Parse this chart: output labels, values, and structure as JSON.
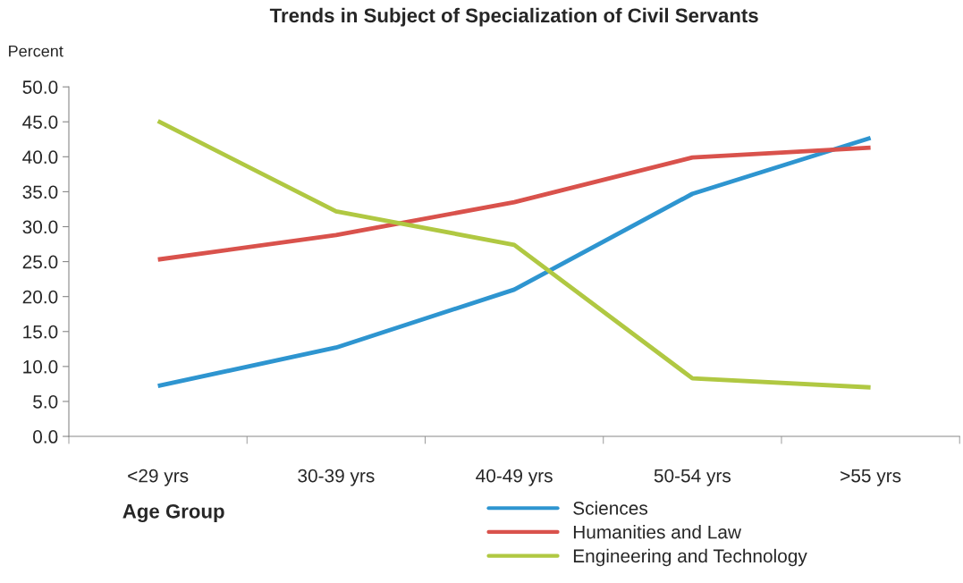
{
  "chart_data": {
    "type": "line",
    "title": "Trends in Subject of Specialization of Civil Servants",
    "ylabel": "Percent",
    "xlabel": "Age Group",
    "categories": [
      "<29 yrs",
      "30-39 yrs",
      "40-49 yrs",
      "50-54 yrs",
      ">55 yrs"
    ],
    "series": [
      {
        "name": "Sciences",
        "color": "#2e95d0",
        "values": [
          7.2,
          12.7,
          21.0,
          34.7,
          42.7
        ]
      },
      {
        "name": "Humanities and Law",
        "color": "#d9524c",
        "values": [
          25.3,
          28.8,
          33.5,
          39.9,
          41.3
        ]
      },
      {
        "name": "Engineering and Technology",
        "color": "#b0c842",
        "values": [
          45.1,
          32.2,
          27.4,
          8.3,
          7.0
        ]
      }
    ],
    "ylim": [
      0,
      50
    ],
    "yticks": [
      {
        "value": 0,
        "label": "0.0"
      },
      {
        "value": 5,
        "label": "5.0"
      },
      {
        "value": 10,
        "label": "10.0"
      },
      {
        "value": 15,
        "label": "15.0"
      },
      {
        "value": 20,
        "label": "20.0"
      },
      {
        "value": 25,
        "label": "25.0"
      },
      {
        "value": 30,
        "label": "30.0"
      },
      {
        "value": 35,
        "label": "35.0"
      },
      {
        "value": 40,
        "label": "40.0"
      },
      {
        "value": 45,
        "label": "45.0"
      },
      {
        "value": 50,
        "label": "50.0"
      }
    ],
    "grid": false,
    "legend": "bottom",
    "marker": "none",
    "line_style": "solid"
  }
}
